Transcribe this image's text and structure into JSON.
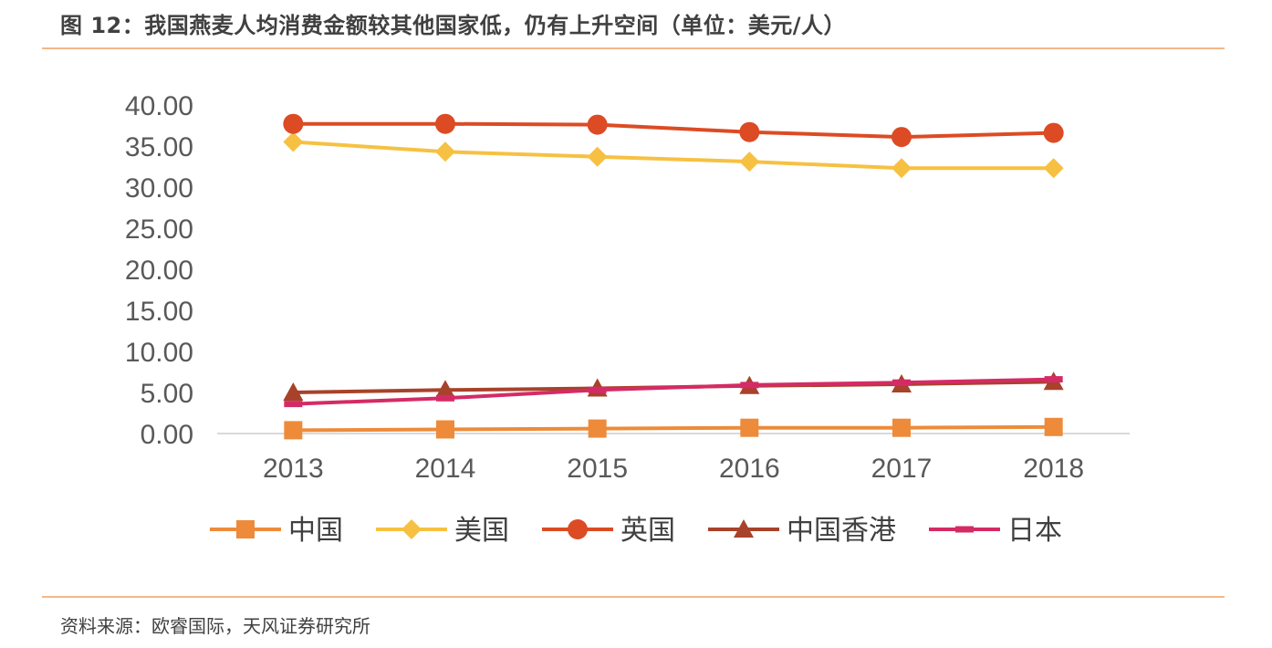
{
  "title": "图 12：我国燕麦人均消费金额较其他国家低，仍有上升空间（单位：美元/人）",
  "source": "资料来源：欧睿国际，天风证券研究所",
  "chart_data": {
    "type": "line",
    "title": "",
    "xlabel": "",
    "ylabel": "",
    "categories": [
      "2013",
      "2014",
      "2015",
      "2016",
      "2017",
      "2018"
    ],
    "y_ticks": [
      "0.00",
      "5.00",
      "10.00",
      "15.00",
      "20.00",
      "25.00",
      "30.00",
      "35.00",
      "40.00"
    ],
    "ylim": [
      0,
      40
    ],
    "grid": false,
    "legend_position": "bottom",
    "series": [
      {
        "name": "中国",
        "marker": "square",
        "color": "#ed8b3a",
        "values": [
          0.4,
          0.5,
          0.6,
          0.7,
          0.7,
          0.8
        ]
      },
      {
        "name": "美国",
        "marker": "diamond",
        "color": "#f6c142",
        "values": [
          35.5,
          34.3,
          33.7,
          33.1,
          32.3,
          32.3
        ]
      },
      {
        "name": "英国",
        "marker": "circle",
        "color": "#dc4b24",
        "values": [
          37.7,
          37.7,
          37.6,
          36.7,
          36.1,
          36.6
        ]
      },
      {
        "name": "中国香港",
        "marker": "triangle",
        "color": "#a8422a",
        "values": [
          5.0,
          5.3,
          5.5,
          5.8,
          6.0,
          6.3
        ]
      },
      {
        "name": "日本",
        "marker": "dash",
        "color": "#d42b66",
        "values": [
          3.6,
          4.3,
          5.3,
          5.9,
          6.2,
          6.6
        ]
      }
    ]
  }
}
